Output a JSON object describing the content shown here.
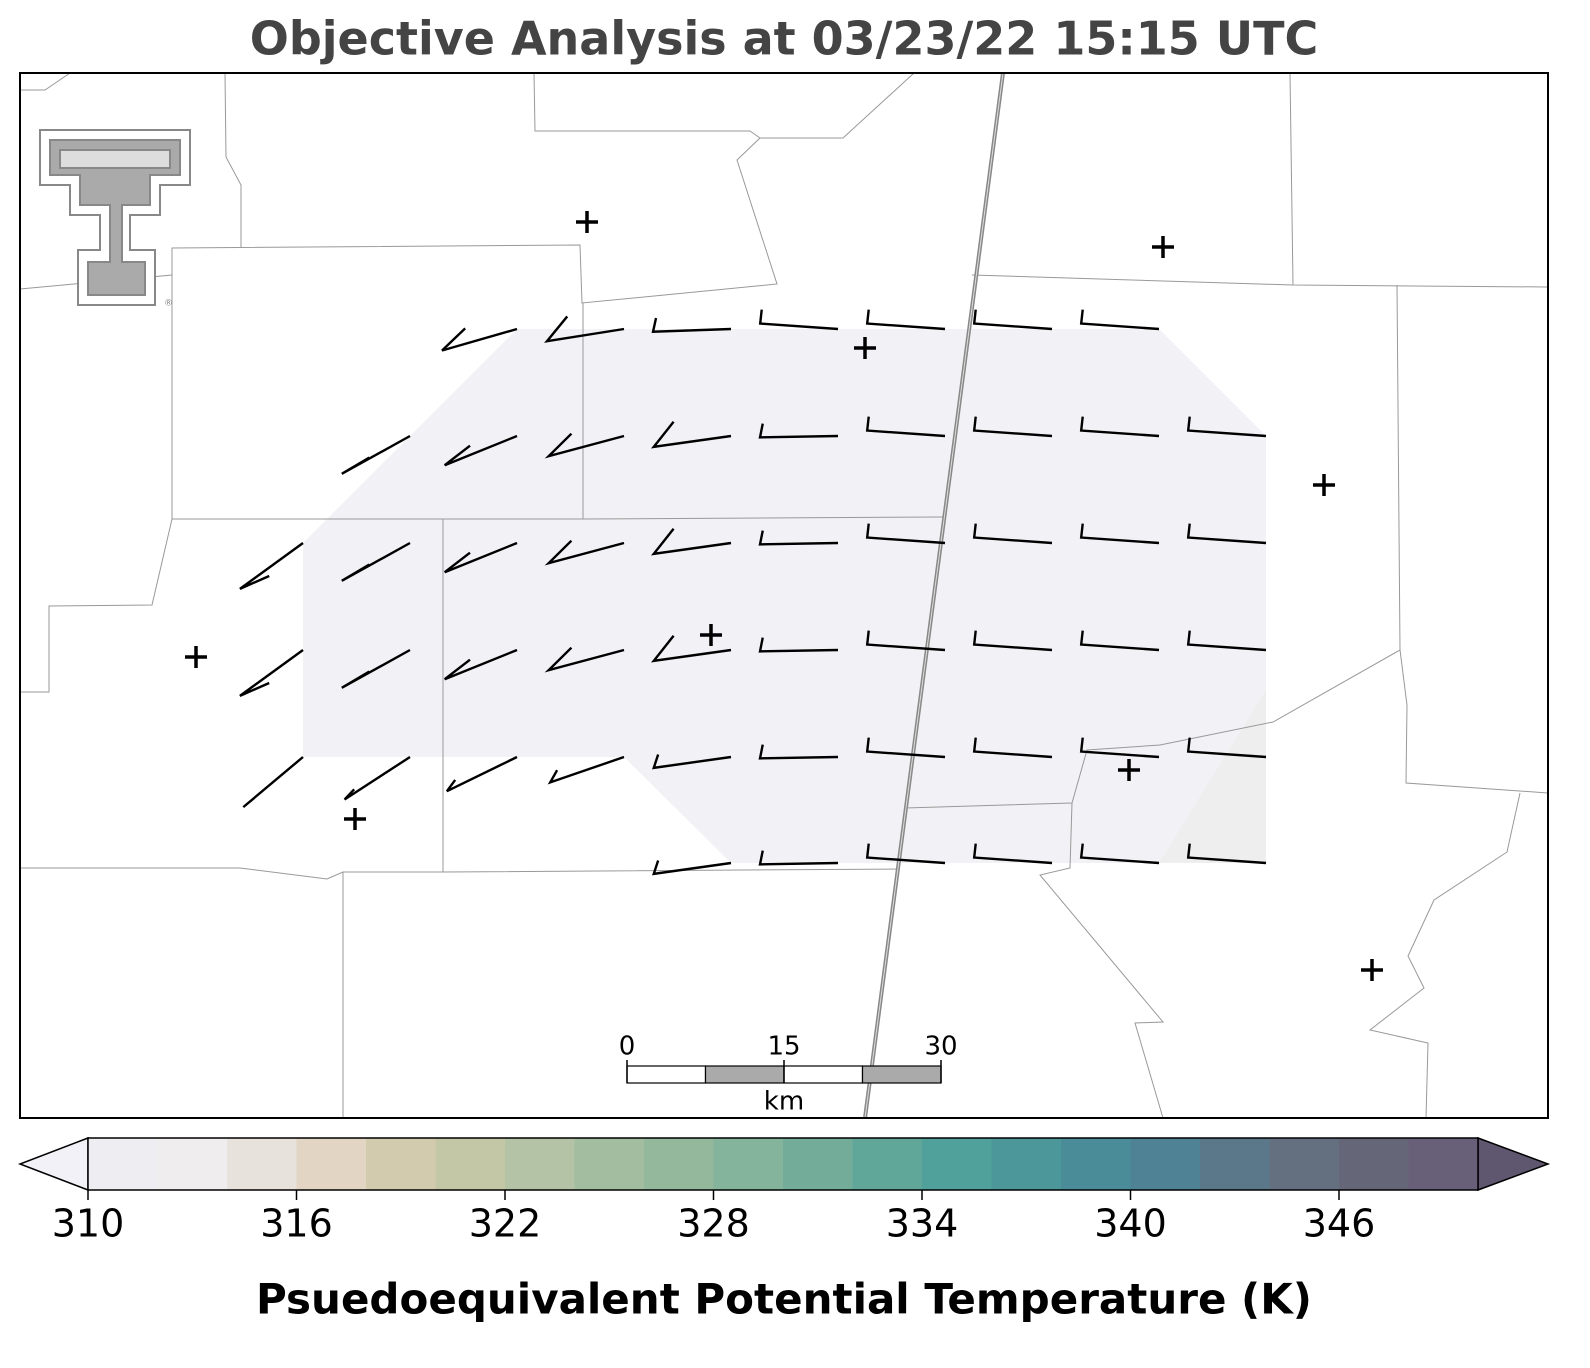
{
  "title": "Objective Analysis at 03/23/22 15:15 UTC",
  "logo_mark": "®",
  "scale_bar": {
    "ticks": [
      0,
      15,
      30
    ],
    "unit": "km"
  },
  "colorbar": {
    "label": "Psuedoequivalent Potential Temperature (K)",
    "lim": [
      310,
      350
    ],
    "ticks": [
      310,
      316,
      322,
      328,
      334,
      340,
      346
    ],
    "bounds": [
      310,
      312,
      314,
      316,
      318,
      320,
      322,
      324,
      326,
      328,
      330,
      332,
      334,
      336,
      338,
      340,
      342,
      344,
      346,
      348,
      350
    ],
    "colors": [
      "#eeedf1",
      "#efeded",
      "#e8e2dc",
      "#e2d5c3",
      "#d3cbae",
      "#c4c7a6",
      "#b4c3a5",
      "#a2bd9f",
      "#93b89b",
      "#84b49b",
      "#73ad99",
      "#60a79a",
      "#50a09b",
      "#4b979a",
      "#4a8d98",
      "#4f8294",
      "#5a7889",
      "#646f80",
      "#666679",
      "#686078"
    ],
    "under_color": "#f2f1f7",
    "over_color": "#5f5670"
  }
}
